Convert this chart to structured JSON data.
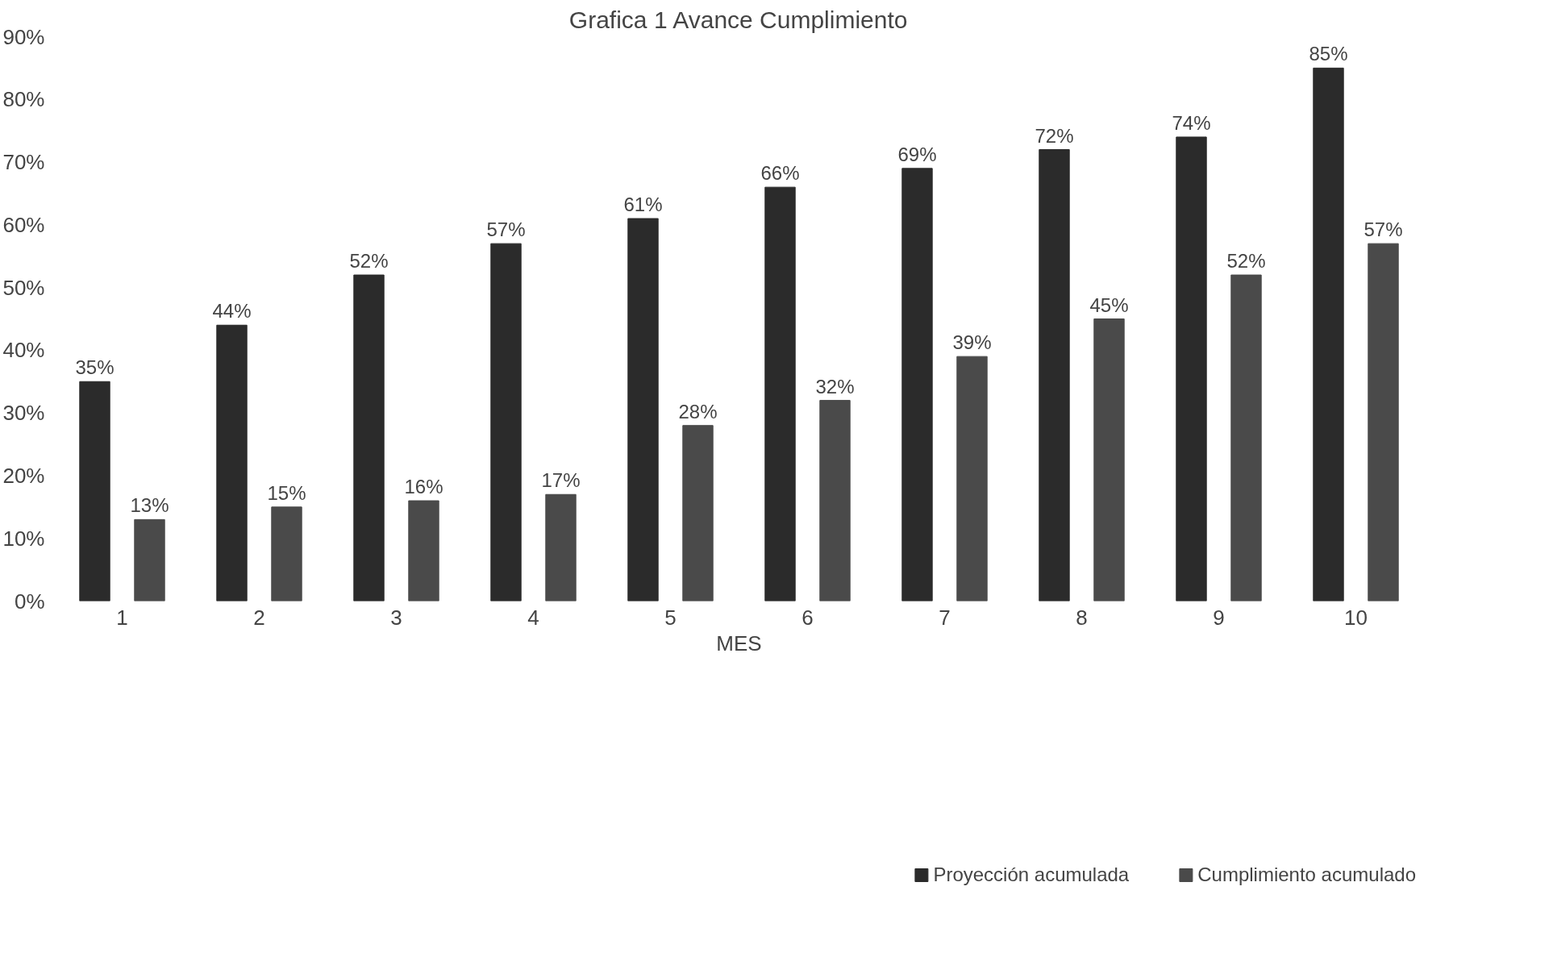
{
  "chart_data": {
    "type": "bar",
    "title": "Grafica 1 Avance Cumplimiento",
    "xlabel": "MES",
    "categories": [
      "1",
      "2",
      "3",
      "4",
      "5",
      "6",
      "7",
      "8",
      "9",
      "10"
    ],
    "series": [
      {
        "name": "Proyección acumulada",
        "color": "#2b2b2b",
        "values": [
          35,
          44,
          52,
          57,
          61,
          66,
          69,
          72,
          74,
          85
        ],
        "value_labels": [
          "35%",
          "44%",
          "52%",
          "57%",
          "61%",
          "66%",
          "69%",
          "72%",
          "74%",
          "85%"
        ]
      },
      {
        "name": "Cumplimiento acumulado",
        "color": "#4a4a4a",
        "values": [
          13,
          15,
          16,
          17,
          28,
          32,
          39,
          45,
          52,
          57
        ],
        "value_labels": [
          "13%",
          "15%",
          "16%",
          "17%",
          "28%",
          "32%",
          "39%",
          "45%",
          "52%",
          "57%"
        ]
      }
    ],
    "ylim": [
      0,
      90
    ],
    "yticks": [
      {
        "value": 0,
        "label": "0%"
      },
      {
        "value": 10,
        "label": "10%"
      },
      {
        "value": 20,
        "label": "20%"
      },
      {
        "value": 30,
        "label": "30%"
      },
      {
        "value": 40,
        "label": "40%"
      },
      {
        "value": 50,
        "label": "50%"
      },
      {
        "value": 60,
        "label": "60%"
      },
      {
        "value": 70,
        "label": "70%"
      },
      {
        "value": 80,
        "label": "80%"
      },
      {
        "value": 90,
        "label": "90%"
      }
    ],
    "legend": "bottom",
    "grid": false
  }
}
